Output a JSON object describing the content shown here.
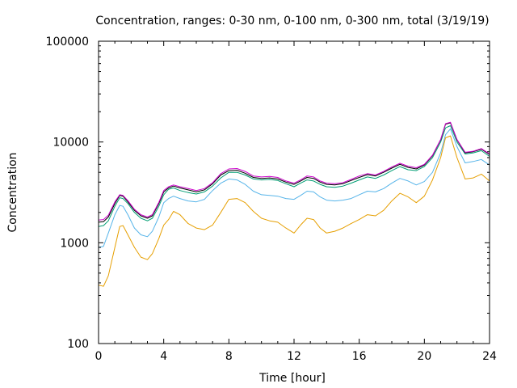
{
  "chart_data": {
    "type": "line",
    "title": "Concentration, ranges: 0-30 nm, 0-100 nm, 0-300 nm, total (3/19/19)",
    "xlabel": "Time [hour]",
    "ylabel": "Concentration",
    "xlim": [
      0,
      24
    ],
    "ylim": [
      100,
      100000
    ],
    "yscale": "log",
    "grid": false,
    "x_ticks": [
      "0",
      "4",
      "8",
      "12",
      "16",
      "20",
      "24"
    ],
    "y_ticks": [
      "100",
      "1000",
      "10000",
      "100000"
    ],
    "x": [
      0,
      0.3,
      0.6,
      1.0,
      1.3,
      1.5,
      1.8,
      2.2,
      2.6,
      3.0,
      3.3,
      3.7,
      4.0,
      4.3,
      4.6,
      5.0,
      5.5,
      6.0,
      6.5,
      7.0,
      7.5,
      8.0,
      8.5,
      9.0,
      9.5,
      10.0,
      10.5,
      11.0,
      11.5,
      12.0,
      12.4,
      12.8,
      13.2,
      13.6,
      14.0,
      14.5,
      15.0,
      15.5,
      16.0,
      16.5,
      17.0,
      17.5,
      18.0,
      18.5,
      19.0,
      19.5,
      20.0,
      20.5,
      21.0,
      21.3,
      21.6,
      22.0,
      22.5,
      23.0,
      23.5,
      24.0
    ],
    "series": [
      {
        "color": "#e69f00",
        "values": [
          380,
          370,
          470,
          900,
          1450,
          1480,
          1200,
          900,
          720,
          680,
          780,
          1100,
          1500,
          1700,
          2050,
          1900,
          1550,
          1400,
          1350,
          1500,
          2000,
          2700,
          2750,
          2500,
          2050,
          1750,
          1650,
          1600,
          1400,
          1250,
          1500,
          1750,
          1700,
          1400,
          1250,
          1300,
          1400,
          1550,
          1700,
          1900,
          1850,
          2100,
          2600,
          3100,
          2850,
          2500,
          2900,
          4200,
          7000,
          11000,
          11500,
          7000,
          4300,
          4400,
          4800,
          4100
        ]
      },
      {
        "color": "#56b4e9",
        "values": [
          900,
          920,
          1250,
          1900,
          2350,
          2300,
          1900,
          1400,
          1200,
          1150,
          1300,
          1800,
          2500,
          2750,
          2900,
          2750,
          2600,
          2550,
          2700,
          3300,
          3900,
          4300,
          4200,
          3800,
          3250,
          3000,
          2950,
          2900,
          2750,
          2700,
          2950,
          3250,
          3200,
          2850,
          2650,
          2600,
          2650,
          2750,
          3000,
          3250,
          3200,
          3450,
          3900,
          4350,
          4100,
          3750,
          4050,
          5000,
          7800,
          11800,
          13500,
          9000,
          6200,
          6400,
          6700,
          5900
        ]
      },
      {
        "color": "#009e73",
        "values": [
          1450,
          1480,
          1650,
          2300,
          2800,
          2750,
          2450,
          2000,
          1750,
          1650,
          1750,
          2300,
          3000,
          3400,
          3500,
          3300,
          3150,
          3050,
          3200,
          3650,
          4400,
          5000,
          5000,
          4700,
          4300,
          4200,
          4250,
          4150,
          3850,
          3600,
          3900,
          4200,
          4100,
          3800,
          3600,
          3550,
          3650,
          3900,
          4200,
          4500,
          4350,
          4700,
          5200,
          5700,
          5300,
          5200,
          5700,
          7000,
          10000,
          13800,
          14500,
          10000,
          7600,
          7800,
          8200,
          7200
        ]
      },
      {
        "color": "#000000",
        "values": [
          1600,
          1620,
          1800,
          2450,
          2950,
          2900,
          2550,
          2100,
          1850,
          1750,
          1850,
          2450,
          3200,
          3500,
          3650,
          3500,
          3350,
          3200,
          3350,
          3850,
          4700,
          5200,
          5250,
          4900,
          4450,
          4350,
          4400,
          4300,
          4000,
          3800,
          4100,
          4450,
          4350,
          4000,
          3800,
          3750,
          3850,
          4150,
          4450,
          4750,
          4600,
          5000,
          5500,
          6000,
          5600,
          5400,
          5900,
          7300,
          10500,
          15000,
          15500,
          10500,
          7800,
          8000,
          8500,
          7500
        ]
      },
      {
        "color": "#cc00cc",
        "values": [
          1680,
          1700,
          1880,
          2550,
          3000,
          2950,
          2620,
          2150,
          1900,
          1800,
          1900,
          2520,
          3300,
          3600,
          3750,
          3600,
          3450,
          3300,
          3450,
          3950,
          4850,
          5400,
          5450,
          5100,
          4600,
          4500,
          4550,
          4450,
          4100,
          3900,
          4200,
          4600,
          4500,
          4100,
          3900,
          3850,
          3950,
          4250,
          4600,
          4850,
          4700,
          5100,
          5650,
          6150,
          5750,
          5550,
          6000,
          7400,
          10600,
          15200,
          15700,
          10600,
          7900,
          8100,
          8600,
          7600
        ]
      }
    ]
  }
}
